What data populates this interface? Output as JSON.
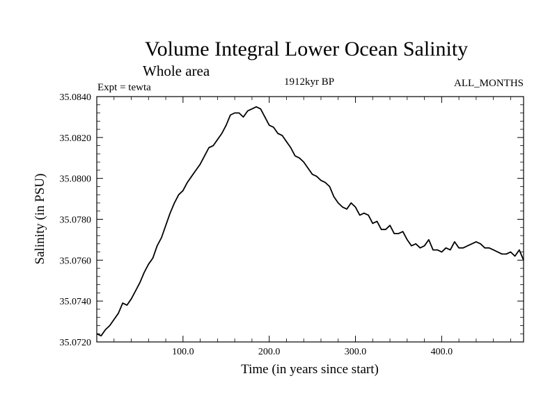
{
  "chart_data": {
    "type": "line",
    "title": "Volume Integral Lower Ocean Salinity",
    "subtitle": "Whole area",
    "left_label": "Expt = tewta",
    "center_label": "1912kyr BP",
    "right_label": "ALL_MONTHS",
    "xlabel": "Time (in years since start)",
    "ylabel": "Salinity (in PSU)",
    "xlim": [
      0,
      495
    ],
    "ylim": [
      35.072,
      35.084
    ],
    "x_ticks": [
      100,
      200,
      300,
      400
    ],
    "x_tick_labels": [
      "100.0",
      "200.0",
      "300.0",
      "400.0"
    ],
    "y_ticks": [
      35.072,
      35.074,
      35.076,
      35.078,
      35.08,
      35.082,
      35.084
    ],
    "y_tick_labels": [
      "35.0720",
      "35.0740",
      "35.0760",
      "35.0780",
      "35.0800",
      "35.0820",
      "35.0840"
    ],
    "series": [
      {
        "name": "salinity",
        "color": "#000000",
        "x": [
          0,
          5,
          10,
          15,
          20,
          25,
          30,
          35,
          40,
          45,
          50,
          55,
          60,
          65,
          70,
          75,
          80,
          85,
          90,
          95,
          100,
          105,
          110,
          115,
          120,
          125,
          130,
          135,
          140,
          145,
          150,
          155,
          160,
          165,
          170,
          175,
          180,
          185,
          190,
          195,
          200,
          205,
          210,
          215,
          220,
          225,
          230,
          235,
          240,
          245,
          250,
          255,
          260,
          265,
          270,
          275,
          280,
          285,
          290,
          295,
          300,
          305,
          310,
          315,
          320,
          325,
          330,
          335,
          340,
          345,
          350,
          355,
          360,
          365,
          370,
          375,
          380,
          385,
          390,
          395,
          400,
          405,
          410,
          415,
          420,
          425,
          430,
          435,
          440,
          445,
          450,
          455,
          460,
          465,
          470,
          475,
          480,
          485,
          490,
          495
        ],
        "values": [
          35.0724,
          35.0723,
          35.0726,
          35.0728,
          35.0731,
          35.0734,
          35.0739,
          35.0738,
          35.0741,
          35.0745,
          35.0749,
          35.0754,
          35.0758,
          35.0761,
          35.0767,
          35.0771,
          35.0777,
          35.0783,
          35.0788,
          35.0792,
          35.0794,
          35.0798,
          35.0801,
          35.0804,
          35.0807,
          35.0811,
          35.0815,
          35.0816,
          35.0819,
          35.0822,
          35.0826,
          35.0831,
          35.0832,
          35.0832,
          35.083,
          35.0833,
          35.0834,
          35.0835,
          35.0834,
          35.083,
          35.0826,
          35.0825,
          35.0822,
          35.0821,
          35.0818,
          35.0815,
          35.0811,
          35.081,
          35.0808,
          35.0805,
          35.0802,
          35.0801,
          35.0799,
          35.0798,
          35.0796,
          35.0791,
          35.0788,
          35.0786,
          35.0785,
          35.0788,
          35.0786,
          35.0782,
          35.0783,
          35.0782,
          35.0778,
          35.0779,
          35.0775,
          35.0775,
          35.0777,
          35.0773,
          35.0773,
          35.0774,
          35.077,
          35.0767,
          35.0768,
          35.0766,
          35.0767,
          35.077,
          35.0765,
          35.0765,
          35.0764,
          35.0766,
          35.0765,
          35.0769,
          35.0766,
          35.0766,
          35.0767,
          35.0768,
          35.0769,
          35.0768,
          35.0766,
          35.0766,
          35.0765,
          35.0764,
          35.0763,
          35.0763,
          35.0764,
          35.0762,
          35.0765,
          35.076
        ]
      }
    ]
  }
}
